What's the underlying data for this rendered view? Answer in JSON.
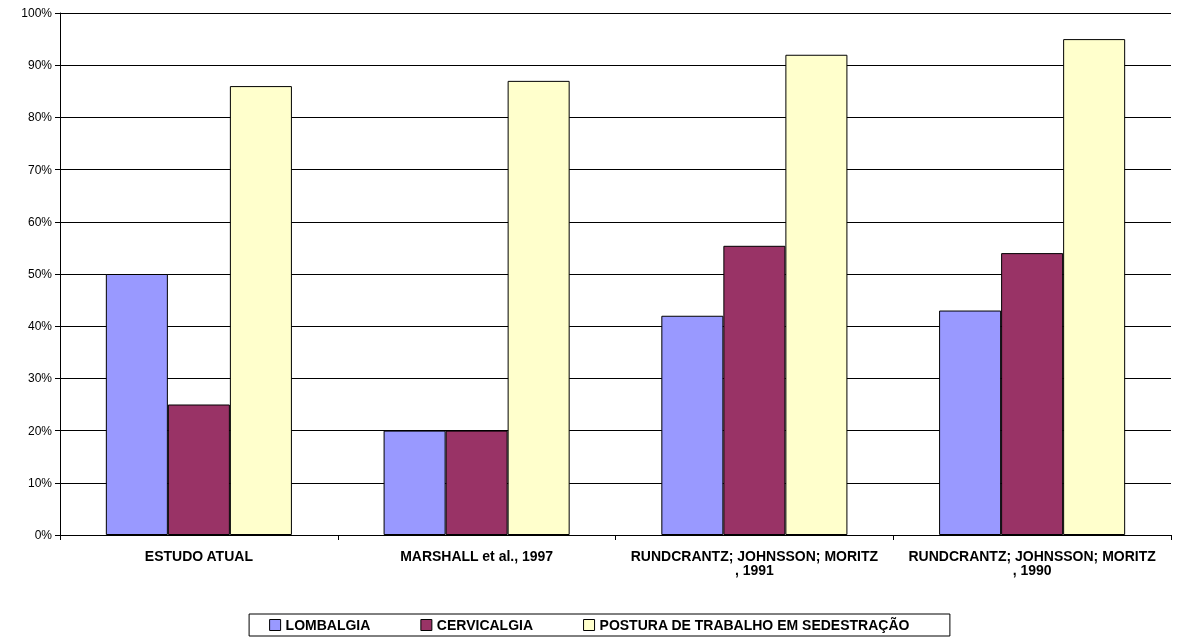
{
  "chart_data": {
    "type": "bar",
    "categories": [
      "ESTUDO ATUAL",
      "MARSHALL et al., 1997",
      "RUNDCRANTZ; JOHNSSON; MORITZ, 1991",
      "RUNDCRANTZ; JOHNSSON; MORITZ, 1990"
    ],
    "series": [
      {
        "name": "LOMBALGIA",
        "color": "#9999ff",
        "values": [
          50,
          20,
          42,
          43
        ]
      },
      {
        "name": "CERVICALGIA",
        "color": "#993366",
        "values": [
          25,
          20,
          55.4,
          54
        ]
      },
      {
        "name": "POSTURA DE TRABALHO EM SEDESTRAÇÃO",
        "color": "#ffffcc",
        "values": [
          86,
          87,
          92,
          95
        ]
      }
    ],
    "ylim": [
      0,
      100
    ],
    "yticks": [
      {
        "value": 0,
        "label": "0%"
      },
      {
        "value": 10,
        "label": "10%"
      },
      {
        "value": 20,
        "label": "20%"
      },
      {
        "value": 30,
        "label": "30%"
      },
      {
        "value": 40,
        "label": "40%"
      },
      {
        "value": 50,
        "label": "50%"
      },
      {
        "value": 60,
        "label": "60%"
      },
      {
        "value": 70,
        "label": "70%"
      },
      {
        "value": 80,
        "label": "80%"
      },
      {
        "value": 90,
        "label": "90%"
      },
      {
        "value": 100,
        "label": "100%"
      }
    ],
    "grid": "y",
    "legend": "bottom"
  }
}
